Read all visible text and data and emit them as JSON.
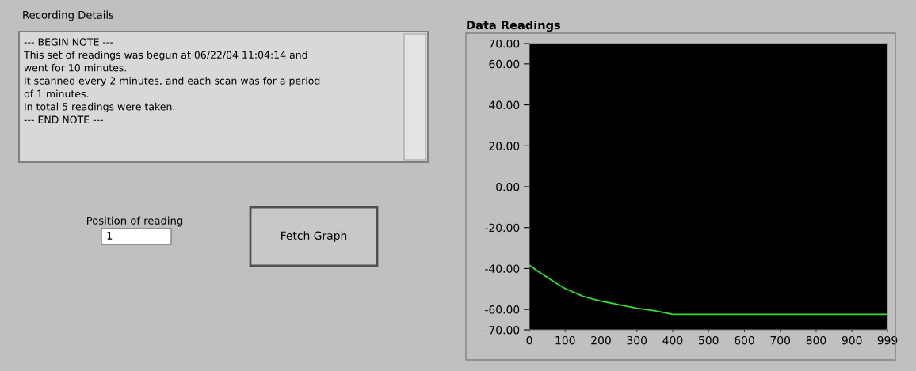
{
  "chart_data": {
    "type": "line",
    "title": "Data Readings",
    "x": [
      0,
      25,
      50,
      75,
      100,
      150,
      200,
      250,
      300,
      350,
      390,
      400,
      500,
      600,
      700,
      800,
      900,
      999
    ],
    "series": [
      {
        "color": "#33dd33",
        "values": [
          -38.3,
          -41.5,
          -44.3,
          -47.2,
          -49.8,
          -53.6,
          -55.9,
          -57.7,
          -59.4,
          -60.7,
          -62.0,
          -62.4,
          -62.4,
          -62.4,
          -62.4,
          -62.4,
          -62.4,
          -62.4
        ]
      }
    ],
    "xlim": [
      0,
      999
    ],
    "ylim": [
      -70,
      70
    ],
    "xticks": [
      0,
      100,
      200,
      300,
      400,
      500,
      600,
      700,
      800,
      900,
      999
    ],
    "yticks": [
      {
        "value": 70,
        "label": "70.00"
      },
      {
        "value": 60,
        "label": "60.00"
      },
      {
        "value": 40,
        "label": "40.00"
      },
      {
        "value": 20,
        "label": "20.00"
      },
      {
        "value": 0,
        "label": "0.00"
      },
      {
        "value": -20,
        "label": "-20.00"
      },
      {
        "value": -40,
        "label": "-40.00"
      },
      {
        "value": -60,
        "label": "-60.00"
      },
      {
        "value": -70,
        "label": "-70.00"
      }
    ],
    "grid": false,
    "marker": "none",
    "line_style": "solid",
    "annotations": [
      "Recording Details",
      "--- BEGIN NOTE ---\nThis set of readings was begun at 06/22/04 11:04:14 and\nwent for 10 minutes.\nIt scanned every 2 minutes, and each scan was for a period\nof 1 minutes.\nIn total 5 readings were taken.\n--- END NOTE ---",
      "Position of reading",
      "1",
      "Fetch Graph"
    ]
  }
}
